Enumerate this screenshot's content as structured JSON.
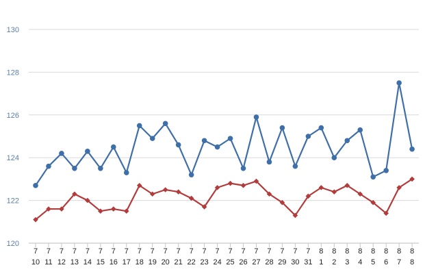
{
  "chart_data": {
    "type": "line",
    "title": "",
    "xlabel": "",
    "ylabel": "",
    "ylim": [
      120,
      130
    ],
    "y_ticks": [
      120,
      122,
      124,
      126,
      128,
      130
    ],
    "grid": true,
    "legend": "none",
    "categories": [
      [
        "7",
        "10"
      ],
      [
        "7",
        "11"
      ],
      [
        "7",
        "12"
      ],
      [
        "7",
        "13"
      ],
      [
        "7",
        "14"
      ],
      [
        "7",
        "15"
      ],
      [
        "7",
        "16"
      ],
      [
        "7",
        "17"
      ],
      [
        "7",
        "18"
      ],
      [
        "7",
        "19"
      ],
      [
        "7",
        "20"
      ],
      [
        "7",
        "21"
      ],
      [
        "7",
        "22"
      ],
      [
        "7",
        "23"
      ],
      [
        "7",
        "24"
      ],
      [
        "7",
        "25"
      ],
      [
        "7",
        "26"
      ],
      [
        "7",
        "27"
      ],
      [
        "7",
        "28"
      ],
      [
        "7",
        "29"
      ],
      [
        "7",
        "30"
      ],
      [
        "7",
        "31"
      ],
      [
        "8",
        "1"
      ],
      [
        "8",
        "2"
      ],
      [
        "8",
        "3"
      ],
      [
        "8",
        "4"
      ],
      [
        "8",
        "5"
      ],
      [
        "8",
        "6"
      ],
      [
        "8",
        "7"
      ],
      [
        "8",
        "8"
      ]
    ],
    "series": [
      {
        "color": "#3f6fa8",
        "marker": "circle",
        "values": [
          122.7,
          123.6,
          124.2,
          123.5,
          124.3,
          123.5,
          124.5,
          123.3,
          125.5,
          124.9,
          125.6,
          124.6,
          123.2,
          124.8,
          124.5,
          124.9,
          123.5,
          125.9,
          123.8,
          125.4,
          123.6,
          125.0,
          125.4,
          124.0,
          124.8,
          125.3,
          123.1,
          123.4,
          127.5,
          124.4
        ]
      },
      {
        "color": "#b23c3c",
        "marker": "diamond",
        "values": [
          121.1,
          121.6,
          121.6,
          122.3,
          122.0,
          121.5,
          121.6,
          121.5,
          122.7,
          122.3,
          122.5,
          122.4,
          122.1,
          121.7,
          122.6,
          122.8,
          122.7,
          122.9,
          122.3,
          121.9,
          121.3,
          122.2,
          122.6,
          122.4,
          122.7,
          122.3,
          121.9,
          121.4,
          122.6,
          123.0
        ]
      }
    ]
  }
}
